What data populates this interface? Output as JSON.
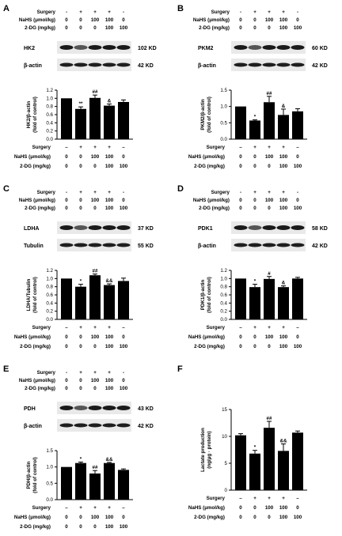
{
  "row_labels": [
    "Surgery",
    "NaHS (μmol/kg)",
    "2-DG (mg/kg)"
  ],
  "treatments": {
    "surgery": [
      "–",
      "+",
      "+",
      "+",
      "–"
    ],
    "nahs": [
      "0",
      "0",
      "100",
      "100",
      "0"
    ],
    "dg": [
      "0",
      "0",
      "0",
      "100",
      "100"
    ]
  },
  "header_surgery": [
    "-",
    "+",
    "+",
    "+",
    "-"
  ],
  "panels": [
    {
      "id": "A",
      "blots": [
        {
          "label": "HK2",
          "size": "102 KD"
        },
        {
          "label": "β-actin",
          "size": "42 KD"
        }
      ],
      "chart_data": {
        "type": "bar",
        "ylabel": "HK2/β-actin",
        "ylabel2": "(fold of control)",
        "ylim": [
          0,
          1.2
        ],
        "yticks": [
          "0.0",
          "0.2",
          "0.4",
          "0.6",
          "0.8",
          "1.0",
          "1.2"
        ],
        "values": [
          1.0,
          0.74,
          1.01,
          0.82,
          0.91
        ],
        "errors": [
          0.0,
          0.05,
          0.07,
          0.04,
          0.05
        ],
        "annotations": [
          "",
          "**",
          "##",
          "&",
          ""
        ]
      }
    },
    {
      "id": "B",
      "blots": [
        {
          "label": "PKM2",
          "size": "60 KD"
        },
        {
          "label": "β-actin",
          "size": "42 KD"
        }
      ],
      "chart_data": {
        "type": "bar",
        "ylabel": "PKM2/β-actin",
        "ylabel2": "(fold of control)",
        "ylim": [
          0,
          1.5
        ],
        "yticks": [
          "0.0",
          "0.5",
          "1.0",
          "1.5"
        ],
        "values": [
          1.0,
          0.57,
          1.13,
          0.74,
          0.85
        ],
        "errors": [
          0.0,
          0.02,
          0.18,
          0.18,
          0.08
        ],
        "annotations": [
          "",
          "*",
          "##",
          "&",
          ""
        ]
      }
    },
    {
      "id": "C",
      "blots": [
        {
          "label": "LDHA",
          "size": "37 KD"
        },
        {
          "label": "Tubulin",
          "size": "55 KD"
        }
      ],
      "chart_data": {
        "type": "bar",
        "ylabel": "LDHA/Tubulin",
        "ylabel2": "(fold of control)",
        "ylim": [
          0,
          1.2
        ],
        "yticks": [
          "0.0",
          "0.2",
          "0.4",
          "0.6",
          "0.8",
          "1.0",
          "1.2"
        ],
        "values": [
          1.0,
          0.8,
          1.08,
          0.84,
          0.94
        ],
        "errors": [
          0.0,
          0.06,
          0.03,
          0.03,
          0.07
        ],
        "annotations": [
          "",
          "*",
          "##",
          "&&",
          ""
        ]
      }
    },
    {
      "id": "D",
      "blots": [
        {
          "label": "PDK1",
          "size": "58 KD"
        },
        {
          "label": "β-actin",
          "size": "42 KD"
        }
      ],
      "chart_data": {
        "type": "bar",
        "ylabel": "PDK1/β-actin",
        "ylabel2": "(fold of control)",
        "ylim": [
          0,
          1.2
        ],
        "yticks": [
          "0.0",
          "0.2",
          "0.4",
          "0.6",
          "0.8",
          "1.0",
          "1.2"
        ],
        "values": [
          1.0,
          0.79,
          0.99,
          0.79,
          1.0
        ],
        "errors": [
          0.0,
          0.07,
          0.06,
          0.03,
          0.03
        ],
        "annotations": [
          "",
          "*",
          "#",
          "&",
          ""
        ]
      }
    },
    {
      "id": "E",
      "blots": [
        {
          "label": "PDH",
          "size": "43 KD"
        },
        {
          "label": "β-actin",
          "size": "42 KD"
        }
      ],
      "chart_data": {
        "type": "bar",
        "ylabel": "PDH/β-actin",
        "ylabel2": "(fold of control)",
        "ylim": [
          0,
          1.5
        ],
        "yticks": [
          "0.0",
          "0.5",
          "1.0",
          "1.5"
        ],
        "values": [
          1.0,
          1.12,
          0.8,
          1.12,
          0.91
        ],
        "errors": [
          0.0,
          0.03,
          0.09,
          0.02,
          0.03
        ],
        "annotations": [
          "",
          "*",
          "##",
          "&&",
          ""
        ]
      }
    },
    {
      "id": "F",
      "blots": [],
      "chart_data": {
        "type": "bar",
        "ylabel": "Lactate production",
        "ylabel2": "(ng/μg · protein)",
        "ylim": [
          0,
          15
        ],
        "yticks": [
          "0",
          "5",
          "10",
          "15"
        ],
        "values": [
          10.2,
          6.8,
          11.6,
          7.3,
          10.7
        ],
        "errors": [
          0.3,
          0.6,
          1.2,
          1.3,
          0.3
        ],
        "annotations": [
          "",
          "*",
          "##",
          "&&",
          ""
        ]
      }
    }
  ]
}
